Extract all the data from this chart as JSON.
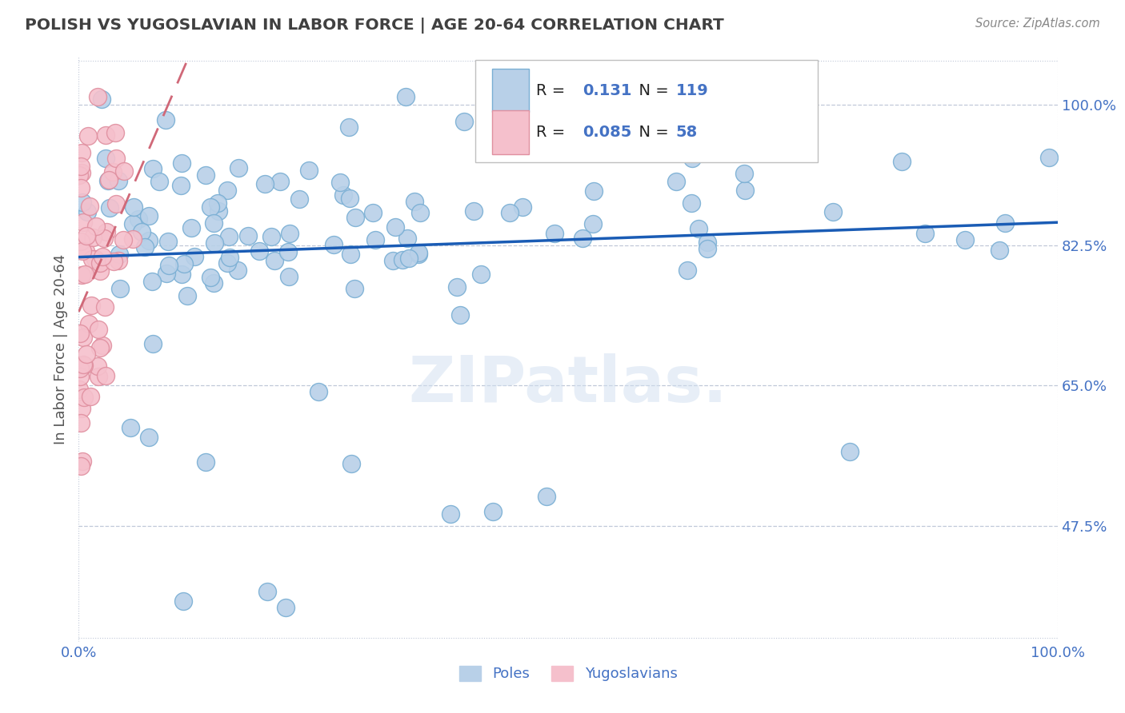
{
  "title": "POLISH VS YUGOSLAVIAN IN LABOR FORCE | AGE 20-64 CORRELATION CHART",
  "source": "Source: ZipAtlas.com",
  "ylabel_label": "In Labor Force | Age 20-64",
  "ytick_labels": [
    "47.5%",
    "65.0%",
    "82.5%",
    "100.0%"
  ],
  "ytick_values": [
    0.475,
    0.65,
    0.825,
    1.0
  ],
  "xmin": 0.0,
  "xmax": 1.0,
  "ymin": 0.33,
  "ymax": 1.06,
  "poles_R": 0.131,
  "poles_N": 119,
  "yugo_R": 0.085,
  "yugo_N": 58,
  "poles_color": "#b8d0e8",
  "poles_edge": "#7aafd4",
  "yugo_color": "#f5c0cc",
  "yugo_edge": "#e090a0",
  "trend_poles_color": "#1a5cb5",
  "trend_yugo_color": "#d06878",
  "legend_label_poles": "Poles",
  "legend_label_yugo": "Yugoslavians",
  "watermark": "ZIPatlas.",
  "title_color": "#404040",
  "axis_label_color": "#4472c4"
}
